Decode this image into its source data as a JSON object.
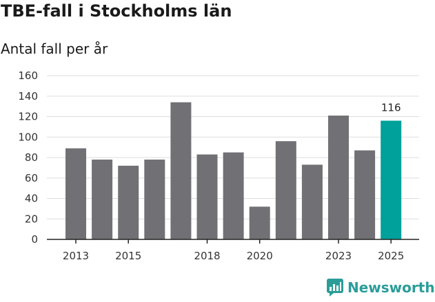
{
  "header": {
    "title": "TBE-fall i Stockholms län",
    "subtitle": "Antal fall per år"
  },
  "brand": {
    "name": "Newsworthy",
    "icon": "newsworthy-logo-icon",
    "color": "#2a9d99"
  },
  "colors": {
    "bar": "#717074",
    "highlight": "#00a19a",
    "grid": "#dddddd",
    "axis": "#222222"
  },
  "chart_data": {
    "type": "bar",
    "title": "TBE-fall i Stockholms län",
    "subtitle": "Antal fall per år",
    "xlabel": "",
    "ylabel": "",
    "categories": [
      2013,
      2014,
      2015,
      2016,
      2017,
      2018,
      2019,
      2020,
      2021,
      2022,
      2023,
      2024,
      2025
    ],
    "values": [
      89,
      78,
      72,
      78,
      134,
      83,
      85,
      32,
      96,
      73,
      121,
      87,
      116
    ],
    "x_tick_labels": [
      "2013",
      "2015",
      "2018",
      "2020",
      "2023",
      "2025"
    ],
    "y_ticks": [
      0,
      20,
      40,
      60,
      80,
      100,
      120,
      140,
      160
    ],
    "ylim": [
      0,
      160
    ],
    "highlight_index": 12,
    "highlight_label": "116",
    "grid": true
  }
}
